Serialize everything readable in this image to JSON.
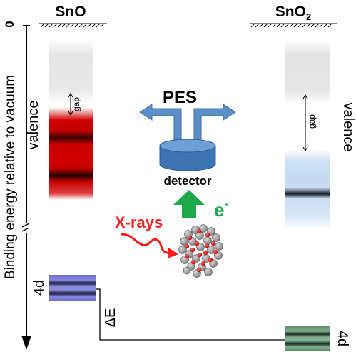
{
  "labels": {
    "sno": "SnO",
    "sno2_base": "SnO",
    "sno2_sub": "2",
    "zero": "0",
    "axis": "Binding energy relative to vacuum",
    "valence_left": "valence",
    "valence_right": "valence",
    "gap_left": "gap",
    "gap_right": "gap",
    "pes": "PES",
    "detector": "detector",
    "xrays": "X-rays",
    "electron": "e",
    "electron_sup": "-",
    "core_left": "4d",
    "core_right": "4d",
    "delta_e": "ΔE"
  },
  "colors": {
    "sno_valence": "#d40000",
    "sno2_valence": "#bcd6f3",
    "detector": "#4f86c6",
    "pes_arrows": "#5b8fc9",
    "electron_arrow": "#1ea84b",
    "xrays": "#ff1a1a",
    "core_sno": "#7b7bd0",
    "core_sno2": "#6f9e7f",
    "atoms_grey": "#9a9a9a",
    "atoms_red": "#dd1111"
  }
}
